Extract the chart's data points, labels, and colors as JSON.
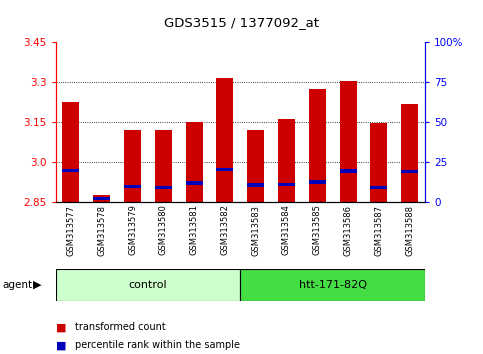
{
  "title": "GDS3515 / 1377092_at",
  "samples": [
    "GSM313577",
    "GSM313578",
    "GSM313579",
    "GSM313580",
    "GSM313581",
    "GSM313582",
    "GSM313583",
    "GSM313584",
    "GSM313585",
    "GSM313586",
    "GSM313587",
    "GSM313588"
  ],
  "red_values": [
    3.225,
    2.875,
    3.12,
    3.12,
    3.15,
    3.315,
    3.12,
    3.16,
    3.275,
    3.305,
    3.145,
    3.22
  ],
  "blue_values": [
    2.968,
    2.862,
    2.908,
    2.904,
    2.92,
    2.972,
    2.914,
    2.916,
    2.924,
    2.966,
    2.904,
    2.964
  ],
  "ymin": 2.85,
  "ymax": 3.45,
  "yticks_left": [
    2.85,
    3.0,
    3.15,
    3.3,
    3.45
  ],
  "yticks_right": [
    0,
    25,
    50,
    75,
    100
  ],
  "right_tick_labels": [
    "0",
    "25",
    "50",
    "75",
    "100%"
  ],
  "bar_color": "#CC0000",
  "blue_color": "#0000BB",
  "bar_width": 0.55,
  "blue_bar_height": 0.013,
  "grid_linestyle": "dotted",
  "group_light_color": "#ccffcc",
  "group_dark_color": "#44dd44",
  "legend_items": [
    "transformed count",
    "percentile rank within the sample"
  ],
  "control_label": "control",
  "htt_label": "htt-171-82Q",
  "agent_label": "agent"
}
